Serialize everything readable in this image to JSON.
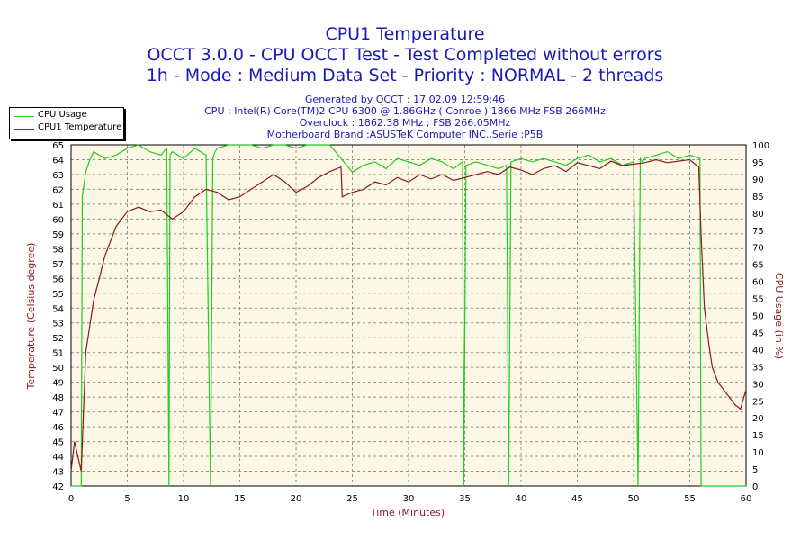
{
  "header": {
    "title": "CPU1 Temperature",
    "subtitle1": "OCCT 3.0.0 - CPU OCCT Test - Test Completed without errors",
    "subtitle2": "1h - Mode : Medium Data Set - Priority : NORMAL - 2 threads",
    "info1": "Generated by OCCT : 17.02.09 12:59:46",
    "info2": "CPU : Intel(R) Core(TM)2 CPU 6300 @ 1.86GHz ( Conroe ) 1866 MHz FSB 266MHz",
    "info3": "Overclock : 1862.38 MHz ; FSB 266.05MHz",
    "info4": "Motherboard Brand :ASUSTeK Computer INC.,Serie :P5B"
  },
  "chart_data": {
    "type": "line",
    "title": "CPU1 Temperature",
    "xlabel": "Time (Minutes)",
    "ylabel_left": "Temperature (Celsius degree)",
    "ylabel_right": "CPU Usage (in %)",
    "xlim": [
      0,
      60
    ],
    "ylim_left": [
      42,
      65
    ],
    "ylim_right": [
      0,
      100
    ],
    "x_ticks": [
      0,
      5,
      10,
      15,
      20,
      25,
      30,
      35,
      40,
      45,
      50,
      55,
      60
    ],
    "y_left_ticks": [
      42,
      43,
      44,
      45,
      46,
      47,
      48,
      49,
      50,
      51,
      52,
      53,
      54,
      55,
      56,
      57,
      58,
      59,
      60,
      61,
      62,
      63,
      64,
      65
    ],
    "y_right_ticks": [
      0,
      5,
      10,
      15,
      20,
      25,
      30,
      35,
      40,
      45,
      50,
      55,
      60,
      65,
      70,
      75,
      80,
      85,
      90,
      95,
      100
    ],
    "grid": true,
    "legend_position": "top-left",
    "colors": {
      "background": "#fdf8e6",
      "temperature": "#8b1a1a",
      "usage": "#22cc22",
      "text": "#1a1ab4"
    },
    "series": [
      {
        "name": "CPU Usage",
        "axis": "right",
        "x": [
          0,
          0.9,
          1.0,
          1.3,
          1.6,
          2.0,
          3.0,
          4.0,
          5.0,
          6.0,
          7.0,
          8.0,
          8.5,
          8.7,
          8.8,
          9.0,
          10,
          11,
          12,
          12.4,
          12.6,
          12.8,
          13,
          14,
          15,
          16,
          17,
          18,
          19,
          20,
          21,
          22,
          23,
          24,
          25,
          26,
          27,
          28,
          29,
          30,
          31,
          32,
          33,
          34,
          34.8,
          34.9,
          35.1,
          36,
          37,
          38,
          38.7,
          38.9,
          39.1,
          40,
          41,
          42,
          43,
          44,
          45,
          46,
          47,
          48,
          49,
          50,
          50.4,
          50.6,
          50.8,
          51,
          52,
          53,
          54,
          55,
          55.9,
          56.0,
          56.2,
          58,
          60
        ],
        "values": [
          0,
          0,
          85,
          92,
          95,
          98,
          96,
          97,
          99,
          100,
          98,
          97,
          99,
          0,
          97,
          98,
          96,
          99,
          97,
          0,
          96,
          98,
          99,
          100,
          100,
          100,
          99,
          100,
          100,
          99,
          100,
          100,
          100,
          96,
          92,
          94,
          95,
          93,
          96,
          95,
          94,
          96,
          95,
          93,
          95,
          0,
          94,
          95,
          94,
          93,
          94,
          0,
          95,
          96,
          95,
          96,
          95,
          94,
          96,
          97,
          95,
          96,
          94,
          95,
          0,
          96,
          95,
          96,
          97,
          98,
          96,
          97,
          96,
          0,
          0,
          0,
          0
        ]
      },
      {
        "name": "CPU1 Temperature",
        "axis": "left",
        "x": [
          0,
          0.3,
          0.6,
          0.9,
          1.1,
          1.3,
          1.7,
          2,
          2.5,
          3,
          3.5,
          4,
          4.5,
          5,
          6,
          7,
          8,
          9,
          10,
          11,
          12,
          13,
          14,
          15,
          16,
          17,
          18,
          19,
          20,
          21,
          22,
          23,
          24,
          24.1,
          25,
          26,
          27,
          28,
          29,
          30,
          31,
          32,
          33,
          34,
          35,
          36,
          37,
          38,
          39,
          40,
          41,
          42,
          43,
          44,
          45,
          46,
          47,
          48,
          49,
          50,
          51,
          52,
          53,
          54,
          55,
          55.8,
          56.0,
          56.3,
          56.7,
          57,
          57.5,
          58,
          58.5,
          59,
          59.5,
          60
        ],
        "values": [
          43,
          45,
          44,
          43,
          47,
          51,
          53,
          54.5,
          56,
          57.5,
          58.5,
          59.5,
          60,
          60.5,
          60.8,
          60.5,
          60.6,
          60,
          60.5,
          61.5,
          62,
          61.8,
          61.3,
          61.5,
          62,
          62.5,
          63,
          62.5,
          61.8,
          62.2,
          62.8,
          63.2,
          63.5,
          61.5,
          61.8,
          62,
          62.5,
          62.3,
          62.8,
          62.5,
          63,
          62.7,
          63,
          62.6,
          62.8,
          63,
          63.2,
          63,
          63.5,
          63.3,
          63,
          63.4,
          63.6,
          63.2,
          63.8,
          63.6,
          63.4,
          63.9,
          63.6,
          63.7,
          63.8,
          64,
          63.8,
          63.9,
          64,
          63.5,
          59,
          54,
          51.5,
          50,
          49,
          48.5,
          48,
          47.5,
          47.2,
          48.5
        ]
      }
    ]
  }
}
